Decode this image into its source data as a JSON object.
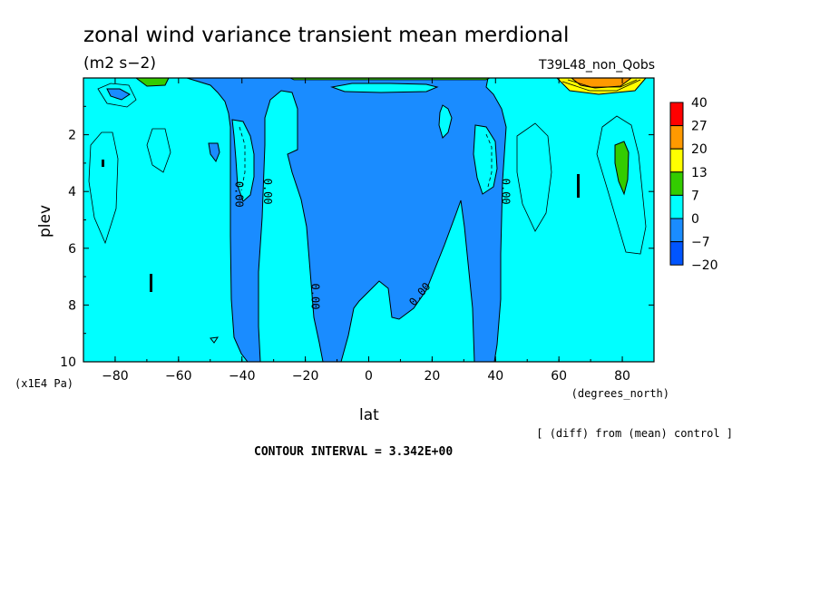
{
  "chart_data": {
    "type": "heatmap",
    "title": "zonal wind variance transient mean merdional",
    "units": "(m2 s−2)",
    "run_label": "T39L48_non_Qobs",
    "xlabel": "lat",
    "x_units": "(degrees_north)",
    "ylabel": "plev",
    "y_units": "(x1E4 Pa)",
    "xlim": [
      -90,
      90
    ],
    "ylim": [
      0,
      10
    ],
    "y_reversed": true,
    "x_ticks": [
      -80,
      -60,
      -40,
      -20,
      0,
      20,
      40,
      60,
      80
    ],
    "x_tick_labels": [
      "−80",
      "−60",
      "−40",
      "−20",
      "0",
      "20",
      "40",
      "60",
      "80"
    ],
    "y_ticks": [
      2,
      4,
      6,
      8,
      10
    ],
    "y_tick_labels": [
      "2",
      "4",
      "6",
      "8",
      "10"
    ],
    "contour_labels": [
      {
        "text": "0.00",
        "x": -42,
        "y": 4.1
      },
      {
        "text": "0.00",
        "x": -33,
        "y": 4.0
      },
      {
        "text": "0.00",
        "x": -18,
        "y": 7.7
      },
      {
        "text": "0.00",
        "x": 17,
        "y": 7.7
      },
      {
        "text": "0.00",
        "x": 42,
        "y": 4.0
      }
    ],
    "legend": {
      "levels": [
        "40",
        "27",
        "20",
        "13",
        "7",
        "0",
        "−7",
        "−20"
      ],
      "colors": [
        "#ff0000",
        "#ff9900",
        "#ffff00",
        "#33cc00",
        "#00ffff",
        "#1a8cff",
        "#0055ff"
      ]
    },
    "note": "[ (diff) from (mean) control ]",
    "contour_interval": "CONTOUR INTERVAL = 3.342E+00"
  },
  "colors": {
    "cyan": "#00ffff",
    "blue": "#1a8cff",
    "green": "#33cc00",
    "yellow": "#ffff00",
    "orange": "#ff9900",
    "red": "#ff0000"
  }
}
